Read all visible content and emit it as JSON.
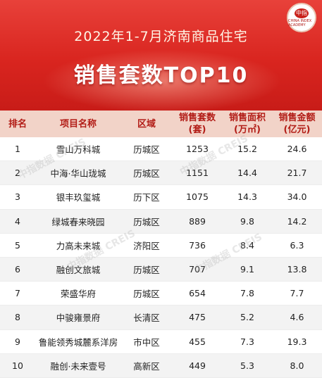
{
  "banner": {
    "subtitle": "2022年1-7月济南商品住宅",
    "title": "销售套数TOP10",
    "logo_mark": "中指",
    "logo_text": "CHINA INDEX ACADEMY"
  },
  "table": {
    "headers": [
      "排名",
      "项目名称",
      "区域",
      "销售套数\n(套)",
      "销售面积\n(万㎡)",
      "销售金额\n(亿元)"
    ],
    "rows": [
      [
        "1",
        "雪山万科城",
        "历城区",
        "1253",
        "15.2",
        "24.6"
      ],
      [
        "2",
        "中海·华山珑城",
        "历城区",
        "1151",
        "14.4",
        "21.7"
      ],
      [
        "3",
        "银丰玖玺城",
        "历下区",
        "1075",
        "14.3",
        "34.0"
      ],
      [
        "4",
        "绿城春来晓园",
        "历城区",
        "889",
        "9.8",
        "14.2"
      ],
      [
        "5",
        "力高未来城",
        "济阳区",
        "736",
        "8.4",
        "6.3"
      ],
      [
        "6",
        "融创文旅城",
        "历城区",
        "707",
        "9.1",
        "13.8"
      ],
      [
        "7",
        "荣盛华府",
        "历城区",
        "654",
        "7.8",
        "7.7"
      ],
      [
        "8",
        "中骏雍景府",
        "长清区",
        "475",
        "5.2",
        "4.6"
      ],
      [
        "9",
        "鲁能领秀城麓系洋房",
        "市中区",
        "455",
        "7.3",
        "19.3"
      ],
      [
        "10",
        "融创·未来壹号",
        "高新区",
        "449",
        "5.3",
        "8.0"
      ]
    ]
  },
  "watermarks": [
    "中指数据 CREIS",
    "中指数据 CREIS",
    "中指数据 CREIS",
    "中指数据 CREIS"
  ]
}
